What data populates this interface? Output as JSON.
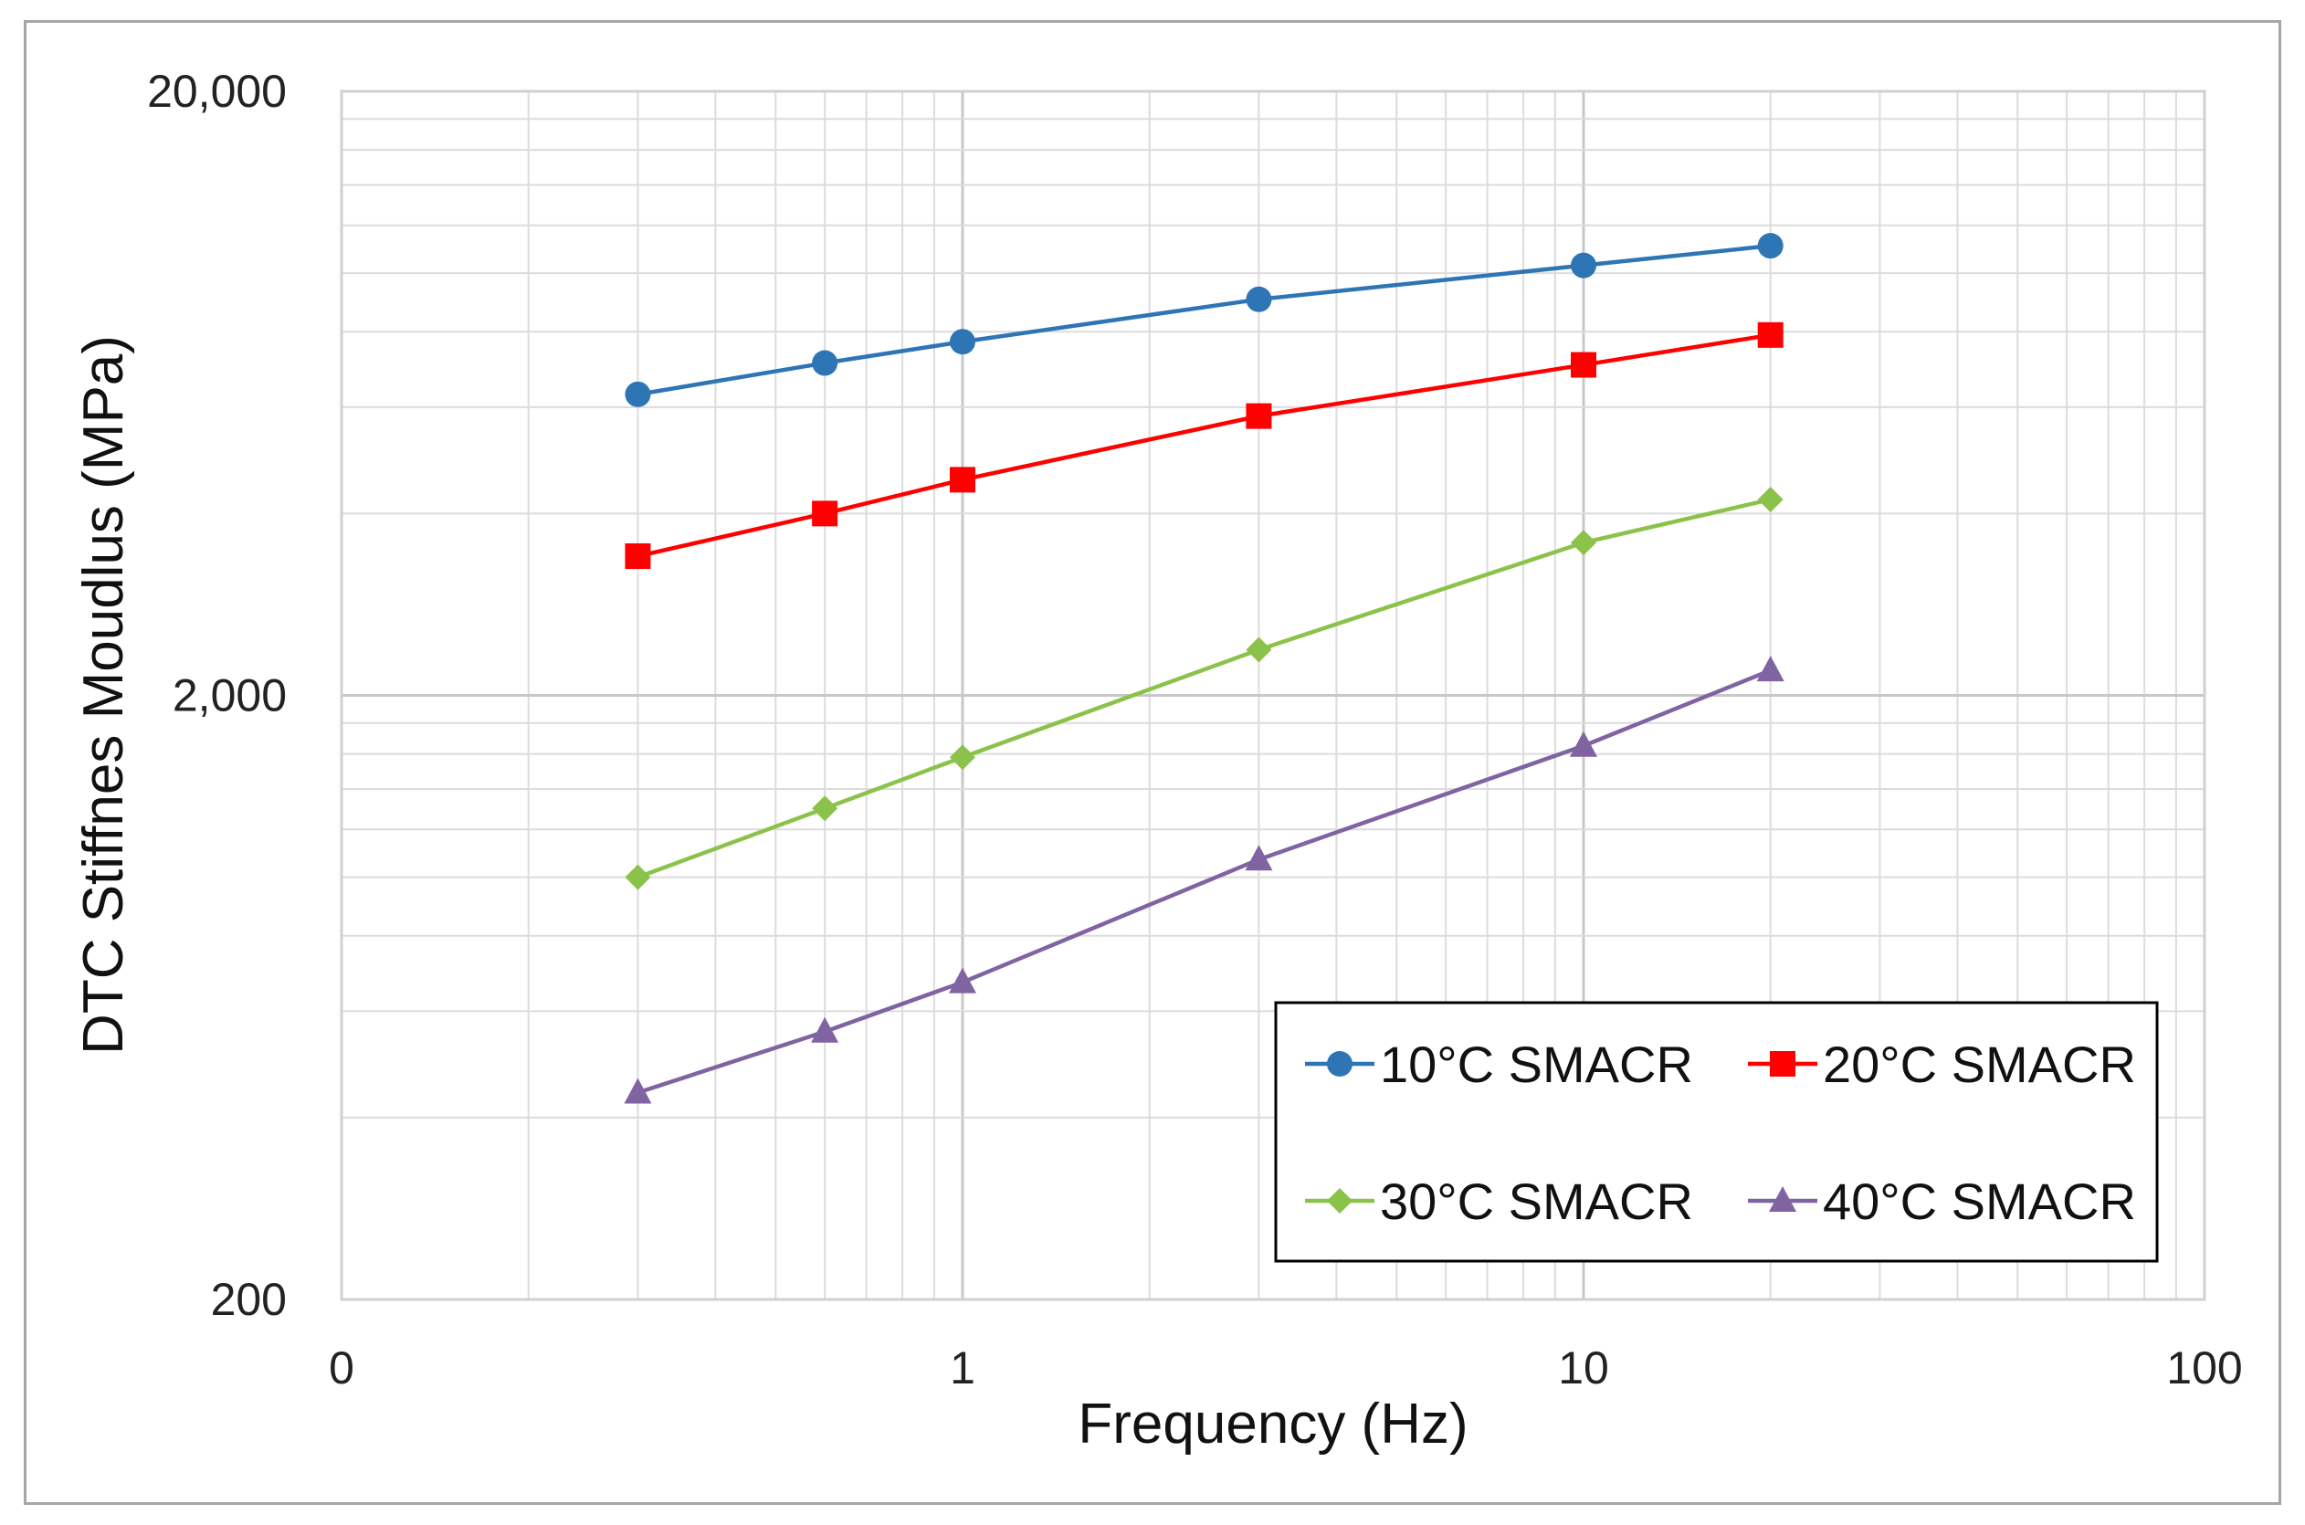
{
  "chart_data": {
    "type": "line",
    "title": "",
    "xlabel": "Frequency (Hz)",
    "ylabel": "DTC Stiffnes Moudlus (MPa)",
    "x_scale": "log",
    "y_scale": "log",
    "xlim": [
      0.1,
      100
    ],
    "ylim": [
      200,
      20000
    ],
    "x_tick_labels": [
      "0",
      "1",
      "10",
      "100"
    ],
    "y_tick_labels": [
      "20,000",
      "2,000",
      "200"
    ],
    "grid": true,
    "legend_position": "bottom-right",
    "x": [
      0.3,
      0.6,
      1,
      3,
      10,
      20
    ],
    "series": [
      {
        "name": "10°C SMACR",
        "color": "#2e75b6",
        "marker": "circle",
        "values": [
          6300,
          7100,
          7700,
          9050,
          10300,
          11100
        ]
      },
      {
        "name": "20°C SMACR",
        "color": "#ff0000",
        "marker": "square",
        "values": [
          3400,
          4000,
          4550,
          5800,
          7050,
          7900
        ]
      },
      {
        "name": "30°C SMACR",
        "color": "#8bc34a",
        "marker": "diamond",
        "values": [
          1000,
          1300,
          1580,
          2380,
          3580,
          4220
        ]
      },
      {
        "name": "40°C SMACR",
        "color": "#8064a2",
        "marker": "triangle",
        "values": [
          440,
          555,
          670,
          1070,
          1650,
          2200
        ]
      }
    ]
  }
}
